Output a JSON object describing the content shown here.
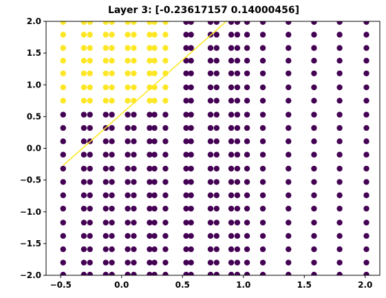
{
  "chart_data": {
    "type": "scatter",
    "title": "Layer 3: [-0.23617157  0.14000456]",
    "xlabel": "",
    "ylabel": "",
    "xlim": [
      -0.62,
      2.12
    ],
    "ylim": [
      -2.0,
      2.0
    ],
    "x_ticks": [
      -0.5,
      0.0,
      0.5,
      1.0,
      1.5,
      2.0
    ],
    "x_tick_labels": [
      "−0.5",
      "0.0",
      "0.5",
      "1.0",
      "1.5",
      "2.0"
    ],
    "y_ticks": [
      2.0,
      1.5,
      1.0,
      0.5,
      0.0,
      -0.5,
      -1.0,
      -1.5,
      -2.0
    ],
    "y_tick_labels": [
      "2.0",
      "1.5",
      "1.0",
      "0.5",
      "0.0",
      "−0.5",
      "−1.0",
      "−1.5",
      "−2.0"
    ],
    "grid": false,
    "legend": "none",
    "colors": {
      "class_0": "#440154",
      "class_1": "#fde725",
      "boundary_line": "#fde725"
    },
    "point_columns_x": [
      -0.48,
      -0.31,
      -0.26,
      -0.13,
      -0.08,
      0.05,
      0.1,
      0.23,
      0.27,
      0.36,
      0.53,
      0.57,
      0.73,
      0.78,
      0.9,
      0.95,
      1.03,
      1.16,
      1.37,
      1.58,
      1.79,
      2.01
    ],
    "point_rows_y": [
      1.99,
      1.79,
      1.58,
      1.38,
      1.18,
      0.96,
      0.75,
      0.53,
      0.32,
      0.11,
      -0.1,
      -0.32,
      -0.53,
      -0.74,
      -0.95,
      -1.17,
      -1.38,
      -1.59,
      -1.8,
      -1.99
    ],
    "class_1_rule": "x < 0.45 and y > 0.62",
    "boundary_line": {
      "x": [
        -0.48,
        0.86
      ],
      "y": [
        -0.27,
        2.0
      ]
    }
  }
}
